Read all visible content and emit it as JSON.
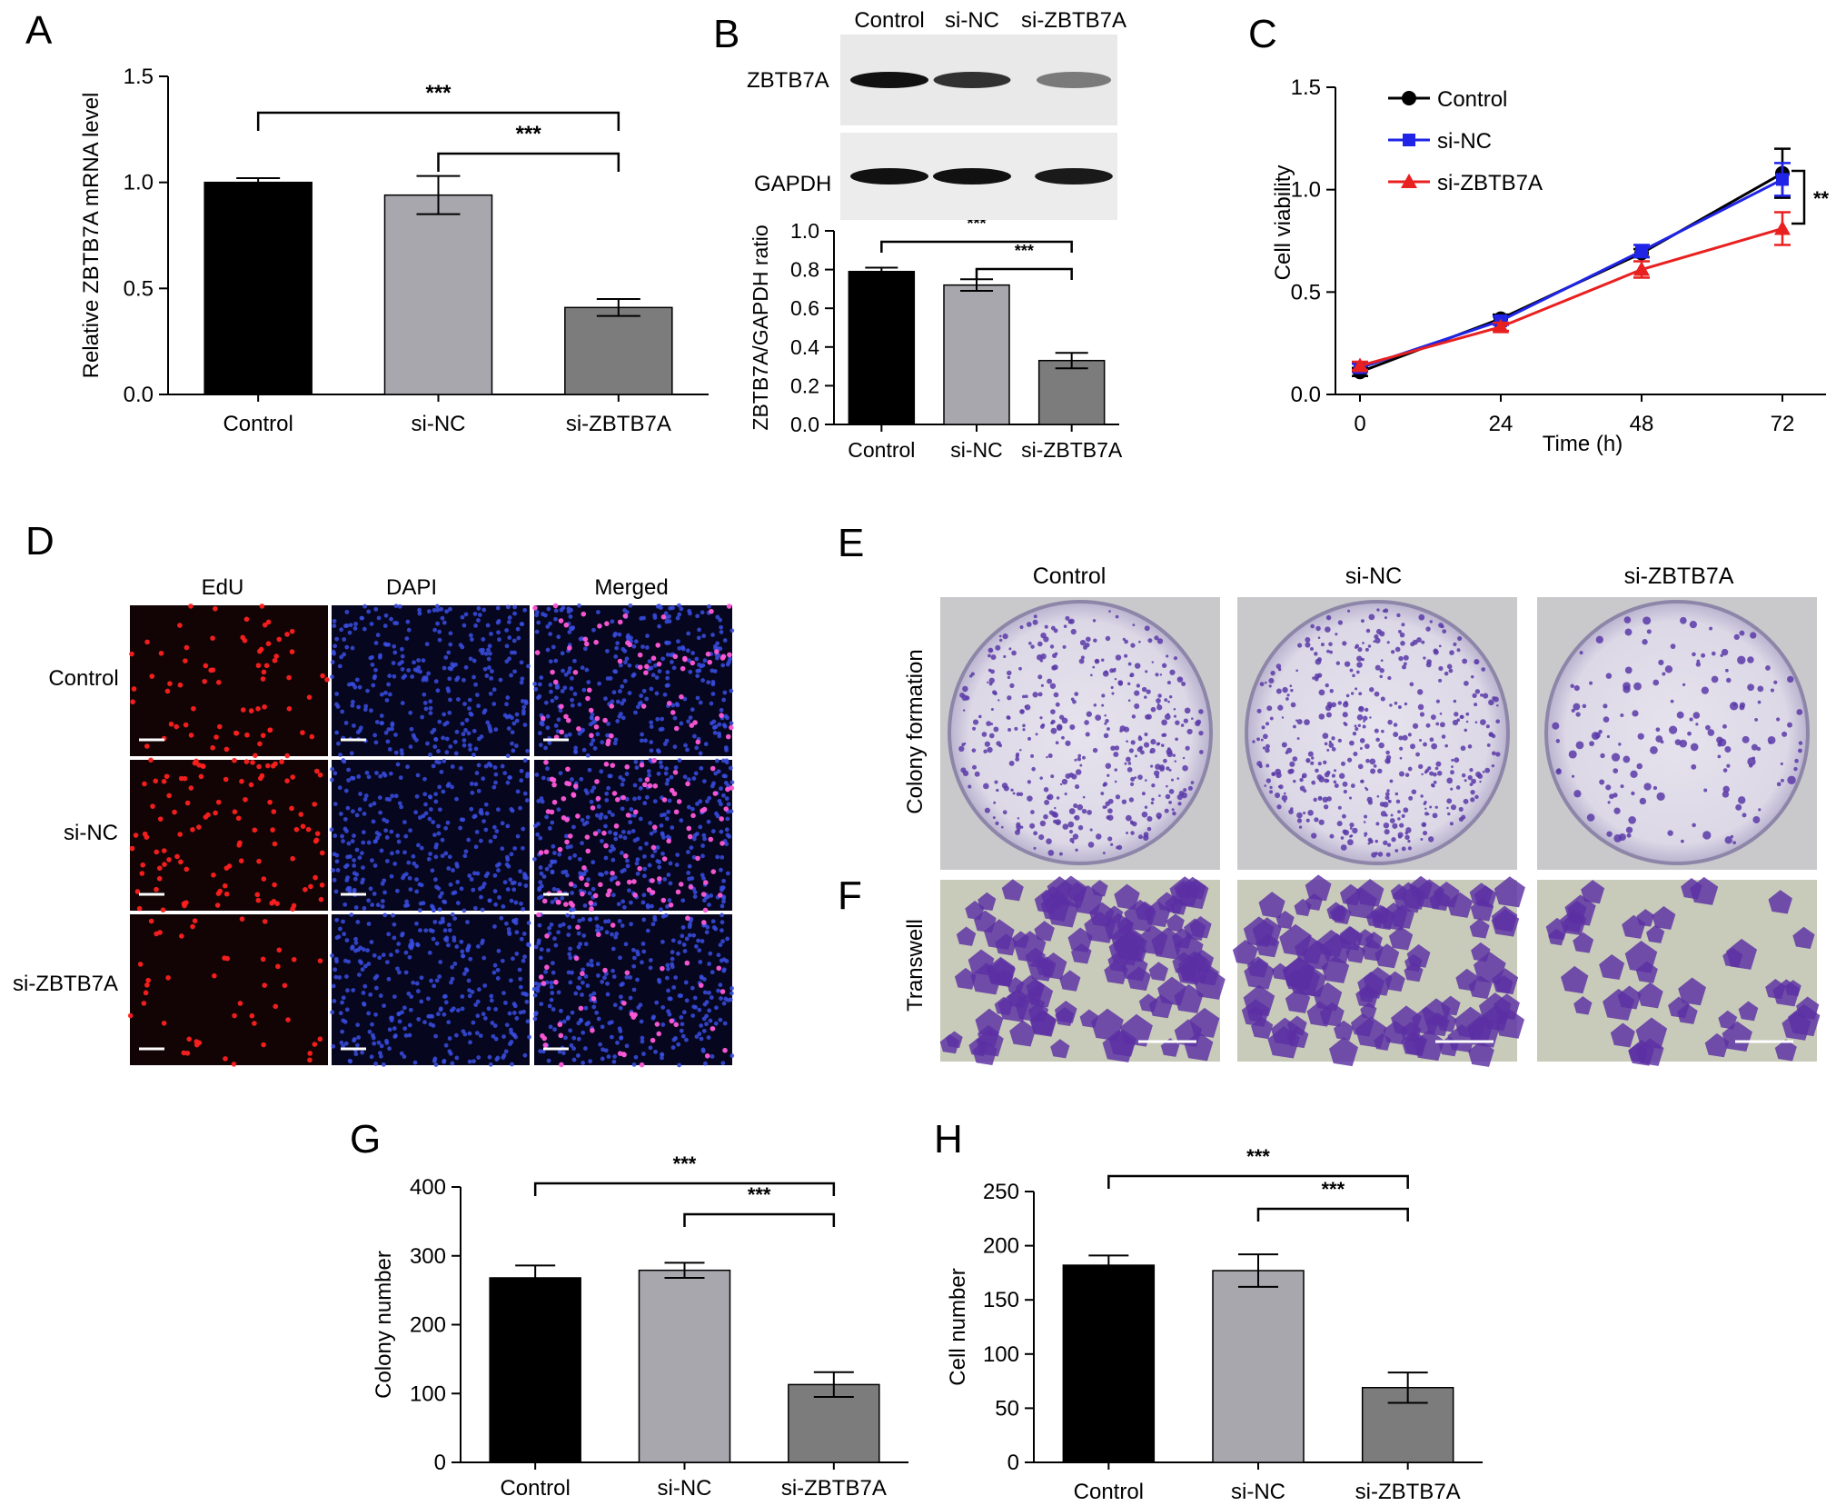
{
  "panel_labels": {
    "A": "A",
    "B": "B",
    "C": "C",
    "D": "D",
    "E": "E",
    "F": "F",
    "G": "G",
    "H": "H"
  },
  "colors": {
    "control_bar": "#000000",
    "si_nc_bar": "#a7a7ad",
    "si_zbtb7a_bar": "#7c7c7c",
    "line_control": "#000000",
    "line_si_nc": "#1f24e6",
    "line_si_zbtb7a": "#e82020",
    "edu_cells": "#ff2020",
    "dapi_cells": "#3a4de0",
    "crystal_violet": "#5a3aa8"
  },
  "significance": {
    "triple": "***",
    "double": "**"
  },
  "blot": {
    "lane_labels": [
      "Control",
      "si-NC",
      "si-ZBTB7A"
    ],
    "rows": [
      {
        "label": "ZBTB7A",
        "intensities": [
          1.0,
          0.8,
          0.35
        ]
      },
      {
        "label": "GAPDH",
        "intensities": [
          1.0,
          1.0,
          0.95
        ]
      }
    ]
  },
  "edu": {
    "column_headers": [
      "EdU",
      "DAPI",
      "Merged"
    ],
    "row_labels": [
      "Control",
      "si-NC",
      "si-ZBTB7A"
    ]
  },
  "colony": {
    "column_headers": [
      "Control",
      "si-NC",
      "si-ZBTB7A"
    ],
    "row_label_colony": "Colony formation",
    "row_label_transwell": "Transwell"
  },
  "chart_data": [
    {
      "panel": "A",
      "type": "bar",
      "categories": [
        "Control",
        "si-NC",
        "si-ZBTB7A"
      ],
      "values": [
        1.0,
        0.94,
        0.41
      ],
      "errors": [
        0.02,
        0.09,
        0.04
      ],
      "ylabel": "Relative ZBTB7A mRNA level",
      "ylim": [
        0,
        1.5
      ],
      "yticks": [
        "0.0",
        "0.5",
        "1.0",
        "1.5"
      ],
      "brackets": [
        {
          "from": 0,
          "to": 2,
          "label": "***"
        },
        {
          "from": 1,
          "to": 2,
          "label": "***"
        }
      ]
    },
    {
      "panel": "B",
      "type": "bar",
      "categories": [
        "Control",
        "si-NC",
        "si-ZBTB7A"
      ],
      "values": [
        0.79,
        0.72,
        0.33
      ],
      "errors": [
        0.02,
        0.03,
        0.04
      ],
      "ylabel": "ZBTB7A/GAPDH ratio",
      "ylim": [
        0,
        1.0
      ],
      "yticks": [
        "0.0",
        "0.2",
        "0.4",
        "0.6",
        "0.8",
        "1.0"
      ],
      "brackets": [
        {
          "from": 0,
          "to": 2,
          "label": "***"
        },
        {
          "from": 1,
          "to": 2,
          "label": "***"
        }
      ]
    },
    {
      "panel": "C",
      "type": "line",
      "x": [
        0,
        24,
        48,
        72
      ],
      "xticks": [
        "0",
        "24",
        "48",
        "72"
      ],
      "xlabel": "Time (h)",
      "ylabel": "Cell viability",
      "ylim": [
        0,
        1.5
      ],
      "yticks": [
        "0.0",
        "0.5",
        "1.0",
        "1.5"
      ],
      "series": [
        {
          "name": "Control",
          "values": [
            0.11,
            0.37,
            0.69,
            1.08
          ],
          "errors": [
            0.02,
            0.02,
            0.02,
            0.12
          ]
        },
        {
          "name": "si-NC",
          "values": [
            0.13,
            0.36,
            0.7,
            1.05
          ],
          "errors": [
            0.02,
            0.02,
            0.03,
            0.08
          ]
        },
        {
          "name": "si-ZBTB7A",
          "values": [
            0.14,
            0.33,
            0.61,
            0.81
          ],
          "errors": [
            0.02,
            0.02,
            0.04,
            0.08
          ]
        }
      ],
      "legend": "top-left",
      "annotation": "**"
    },
    {
      "panel": "G",
      "type": "bar",
      "categories": [
        "Control",
        "si-NC",
        "si-ZBTB7A"
      ],
      "values": [
        268,
        279,
        113
      ],
      "errors": [
        18,
        11,
        18
      ],
      "ylabel": "Colony number",
      "ylim": [
        0,
        400
      ],
      "yticks": [
        "0",
        "100",
        "200",
        "300",
        "400"
      ],
      "brackets": [
        {
          "from": 0,
          "to": 2,
          "label": "***"
        },
        {
          "from": 1,
          "to": 2,
          "label": "***"
        }
      ]
    },
    {
      "panel": "H",
      "type": "bar",
      "categories": [
        "Control",
        "si-NC",
        "si-ZBTB7A"
      ],
      "values": [
        182,
        177,
        69
      ],
      "errors": [
        9,
        15,
        14
      ],
      "ylabel": "Cell number",
      "ylim": [
        0,
        250
      ],
      "yticks": [
        "0",
        "50",
        "100",
        "150",
        "200",
        "250"
      ],
      "brackets": [
        {
          "from": 0,
          "to": 2,
          "label": "***"
        },
        {
          "from": 1,
          "to": 2,
          "label": "***"
        }
      ]
    }
  ]
}
